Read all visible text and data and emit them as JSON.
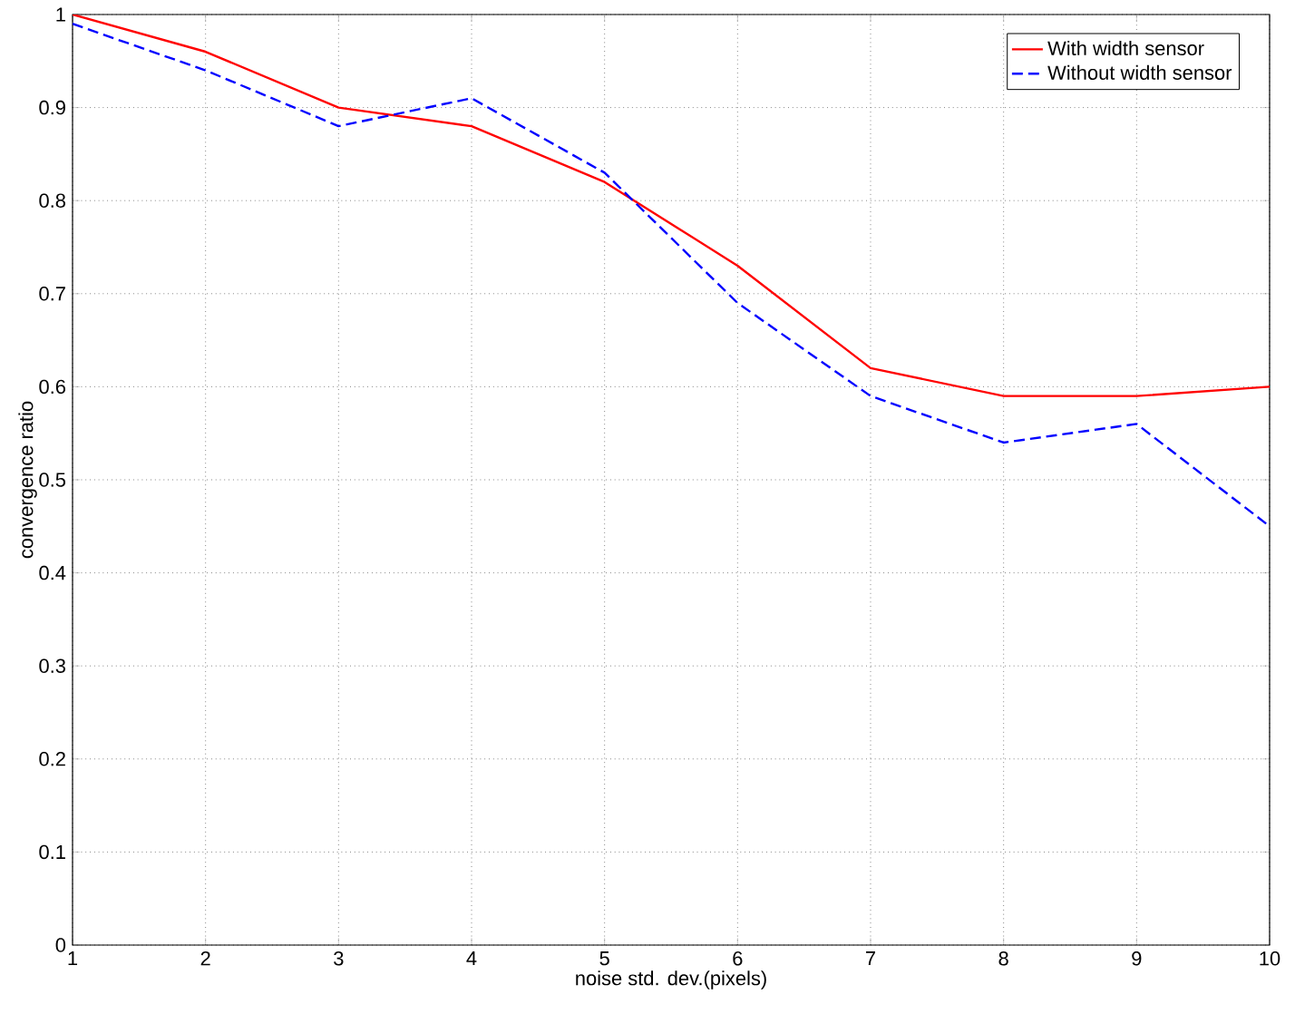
{
  "chart_data": {
    "type": "line",
    "xlabel": "noise std. dev.(pixels)",
    "ylabel": "convergence ratio",
    "x": [
      1,
      2,
      3,
      4,
      5,
      6,
      7,
      8,
      9,
      10
    ],
    "series": [
      {
        "name": "With width sensor",
        "color": "#ff0000",
        "line_style": "solid",
        "values": [
          1.0,
          0.96,
          0.9,
          0.88,
          0.82,
          0.73,
          0.62,
          0.59,
          0.59,
          0.6
        ]
      },
      {
        "name": "Without width sensor",
        "color": "#0000ff",
        "line_style": "dashed",
        "values": [
          0.99,
          0.94,
          0.88,
          0.91,
          0.83,
          0.69,
          0.59,
          0.54,
          0.56,
          0.45
        ]
      }
    ],
    "xlim": [
      1,
      10
    ],
    "ylim": [
      0,
      1
    ],
    "xticks": [
      1,
      2,
      3,
      4,
      5,
      6,
      7,
      8,
      9,
      10
    ],
    "yticks": [
      0,
      0.1,
      0.2,
      0.3,
      0.4,
      0.5,
      0.6,
      0.7,
      0.8,
      0.9,
      1
    ],
    "grid": true,
    "legend": "top right",
    "marker": "none"
  }
}
